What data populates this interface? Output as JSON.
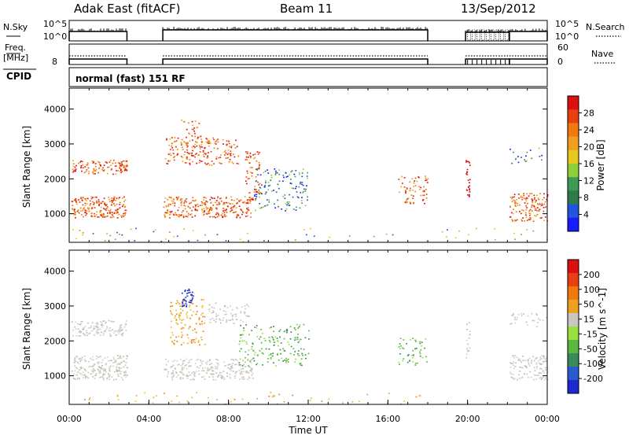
{
  "header": {
    "station": "Adak East (fitACF)",
    "beam": "Beam 11",
    "date": "13/Sep/2012"
  },
  "noise_panel": {
    "left_label": "N.Sky",
    "right_label": "N.Search",
    "tick_labels": [
      "10^5",
      "10^0"
    ]
  },
  "freq_panel": {
    "left_label_line1": "Freq.",
    "left_label_line2": "[MHz]",
    "left_tick": "8",
    "right_label": "Nave",
    "right_ticks": [
      "60",
      "0"
    ]
  },
  "cpid": {
    "label": "CPID",
    "value": "normal (fast) 151 RF"
  },
  "chart_data": [
    {
      "type": "heatmap",
      "name": "power",
      "ylabel": "Slant Range [km]",
      "ylim": [
        180,
        4600
      ],
      "yticks": [
        1000,
        2000,
        3000,
        4000
      ],
      "colorbar": {
        "label": "Power [dB]",
        "ticks": [
          4,
          8,
          12,
          16,
          20,
          24,
          28
        ],
        "colors": [
          "#1a1aff",
          "#2255dd",
          "#2f7a4a",
          "#3d9a52",
          "#8ecf3a",
          "#e8c81a",
          "#f0a020",
          "#f07a10",
          "#e84010",
          "#dd1010"
        ]
      }
    },
    {
      "type": "heatmap",
      "name": "velocity",
      "ylabel": "Slant Range [km]",
      "ylim": [
        180,
        4600
      ],
      "yticks": [
        1000,
        2000,
        3000,
        4000
      ],
      "colorbar": {
        "label": "Velocity [m s^-1]",
        "ticks": [
          200,
          100,
          50,
          15,
          -15,
          -50,
          -100,
          -200
        ],
        "colors": [
          "#1a2ad0",
          "#2a5acc",
          "#3a8a5a",
          "#5ab840",
          "#9adf40",
          "#c8c8c0",
          "#f0a020",
          "#f07a10",
          "#e84010",
          "#dd1010"
        ]
      }
    }
  ],
  "time_axis": {
    "label": "Time UT",
    "ticks": [
      "00:00",
      "04:00",
      "08:00",
      "12:00",
      "16:00",
      "20:00",
      "00:00"
    ]
  }
}
